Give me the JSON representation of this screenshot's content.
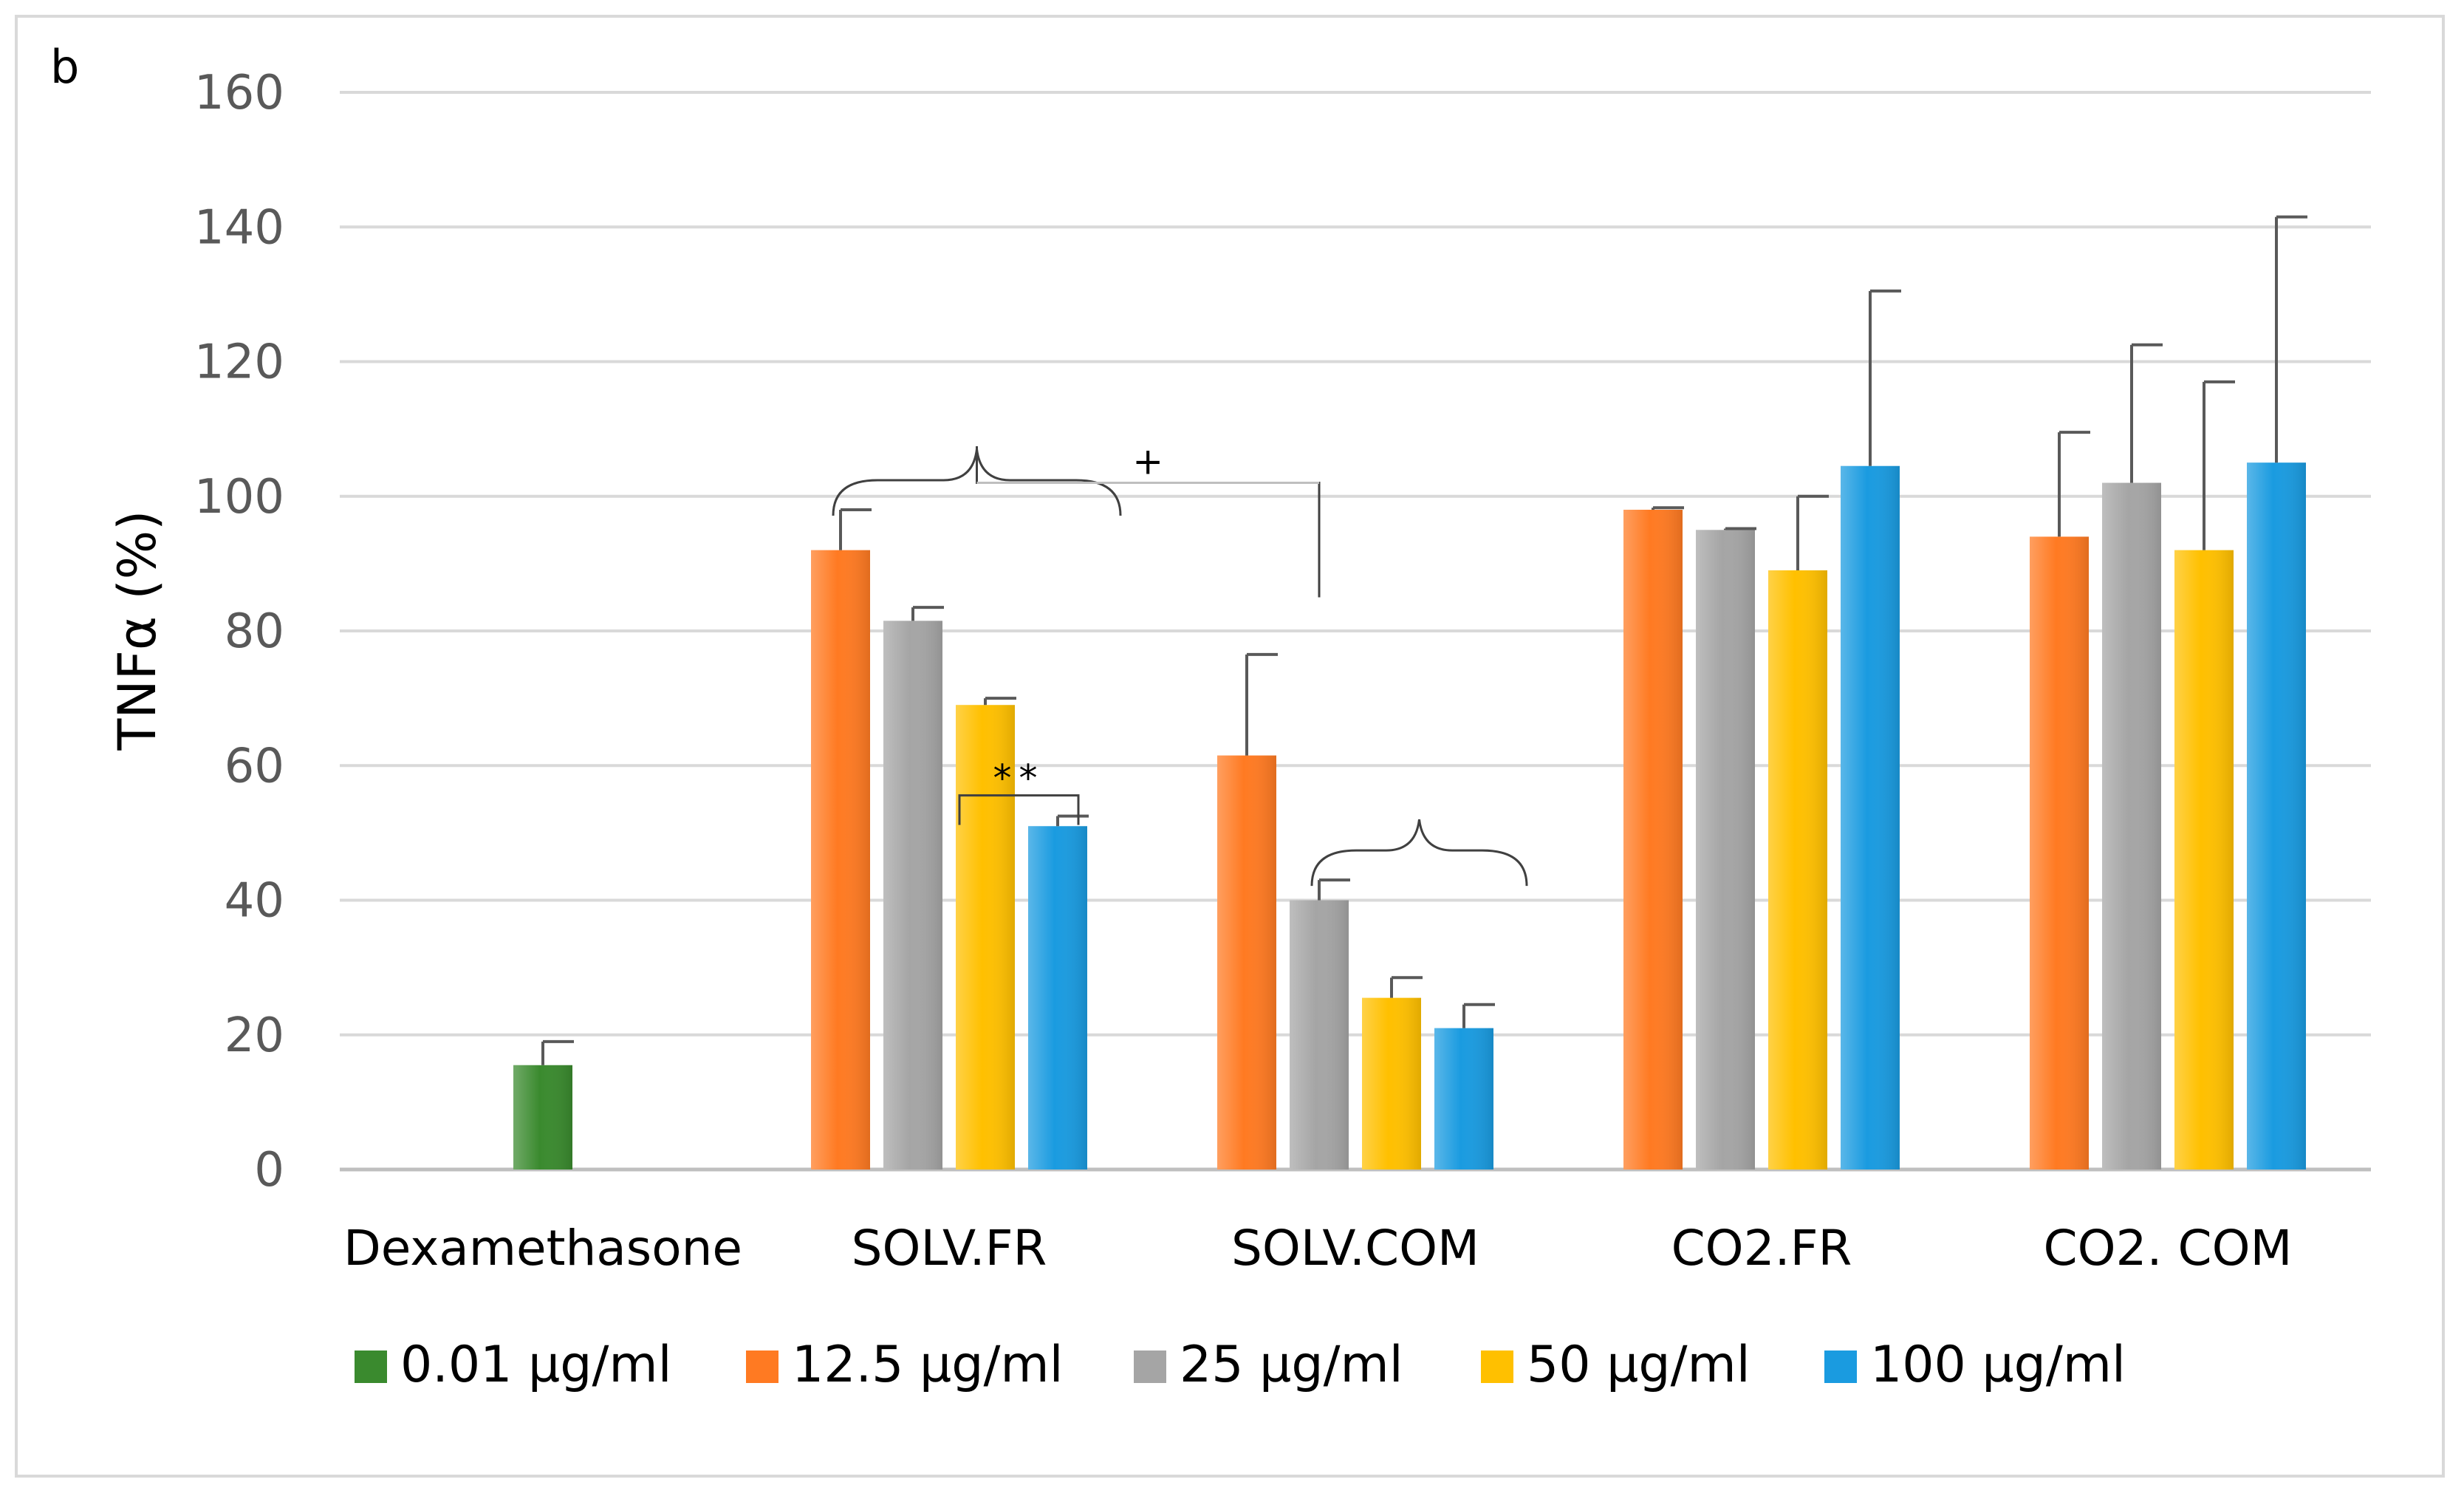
{
  "chart_data": {
    "type": "bar",
    "panel_label": "b",
    "ylabel": "TNFα (%)",
    "xlabel": "",
    "ylim": [
      0,
      160
    ],
    "yticks": [
      0,
      20,
      40,
      60,
      80,
      100,
      120,
      140,
      160
    ],
    "grid": true,
    "legend_position": "bottom",
    "categories": [
      "Dexamethasone",
      "SOLV.FR",
      "SOLV.COM",
      "CO2.FR",
      "CO2. COM"
    ],
    "series": [
      {
        "name": "0.01 µg/ml",
        "color": "#3a8a2e",
        "values": [
          15.5,
          null,
          null,
          null,
          null
        ],
        "errors": [
          3.5,
          null,
          null,
          null,
          null
        ]
      },
      {
        "name": "12.5 µg/ml",
        "color": "#ff7a22",
        "values": [
          null,
          92,
          61.5,
          98,
          94
        ],
        "errors": [
          null,
          6,
          15,
          0.3,
          15.5
        ]
      },
      {
        "name": "25 µg/ml",
        "color": "#a5a5a5",
        "values": [
          null,
          81.5,
          40,
          95,
          102
        ],
        "errors": [
          null,
          2,
          3,
          0.2,
          20.5
        ]
      },
      {
        "name": "50 µg/ml",
        "color": "#ffc000",
        "values": [
          null,
          69,
          25.5,
          89,
          92
        ],
        "errors": [
          null,
          1,
          3,
          11,
          25
        ]
      },
      {
        "name": "100 µg/ml",
        "color": "#1a9be0",
        "values": [
          null,
          51,
          21,
          104.5,
          105
        ],
        "errors": [
          null,
          1.5,
          3.5,
          26,
          36.5
        ]
      }
    ],
    "annotations": [
      {
        "label": "**",
        "type": "bracket",
        "category": "SOLV.FR",
        "series_from": "50 µg/ml",
        "series_to": "100 µg/ml"
      },
      {
        "label": "",
        "type": "brace",
        "category": "SOLV.FR",
        "series_from": "12.5 µg/ml",
        "series_to": "100 µg/ml"
      },
      {
        "label": "",
        "type": "brace",
        "category": "SOLV.COM",
        "series_from": "25 µg/ml",
        "series_to": "100 µg/ml"
      },
      {
        "label": "+",
        "type": "bracket",
        "from_category": "SOLV.FR",
        "to_category": "SOLV.COM"
      }
    ]
  }
}
